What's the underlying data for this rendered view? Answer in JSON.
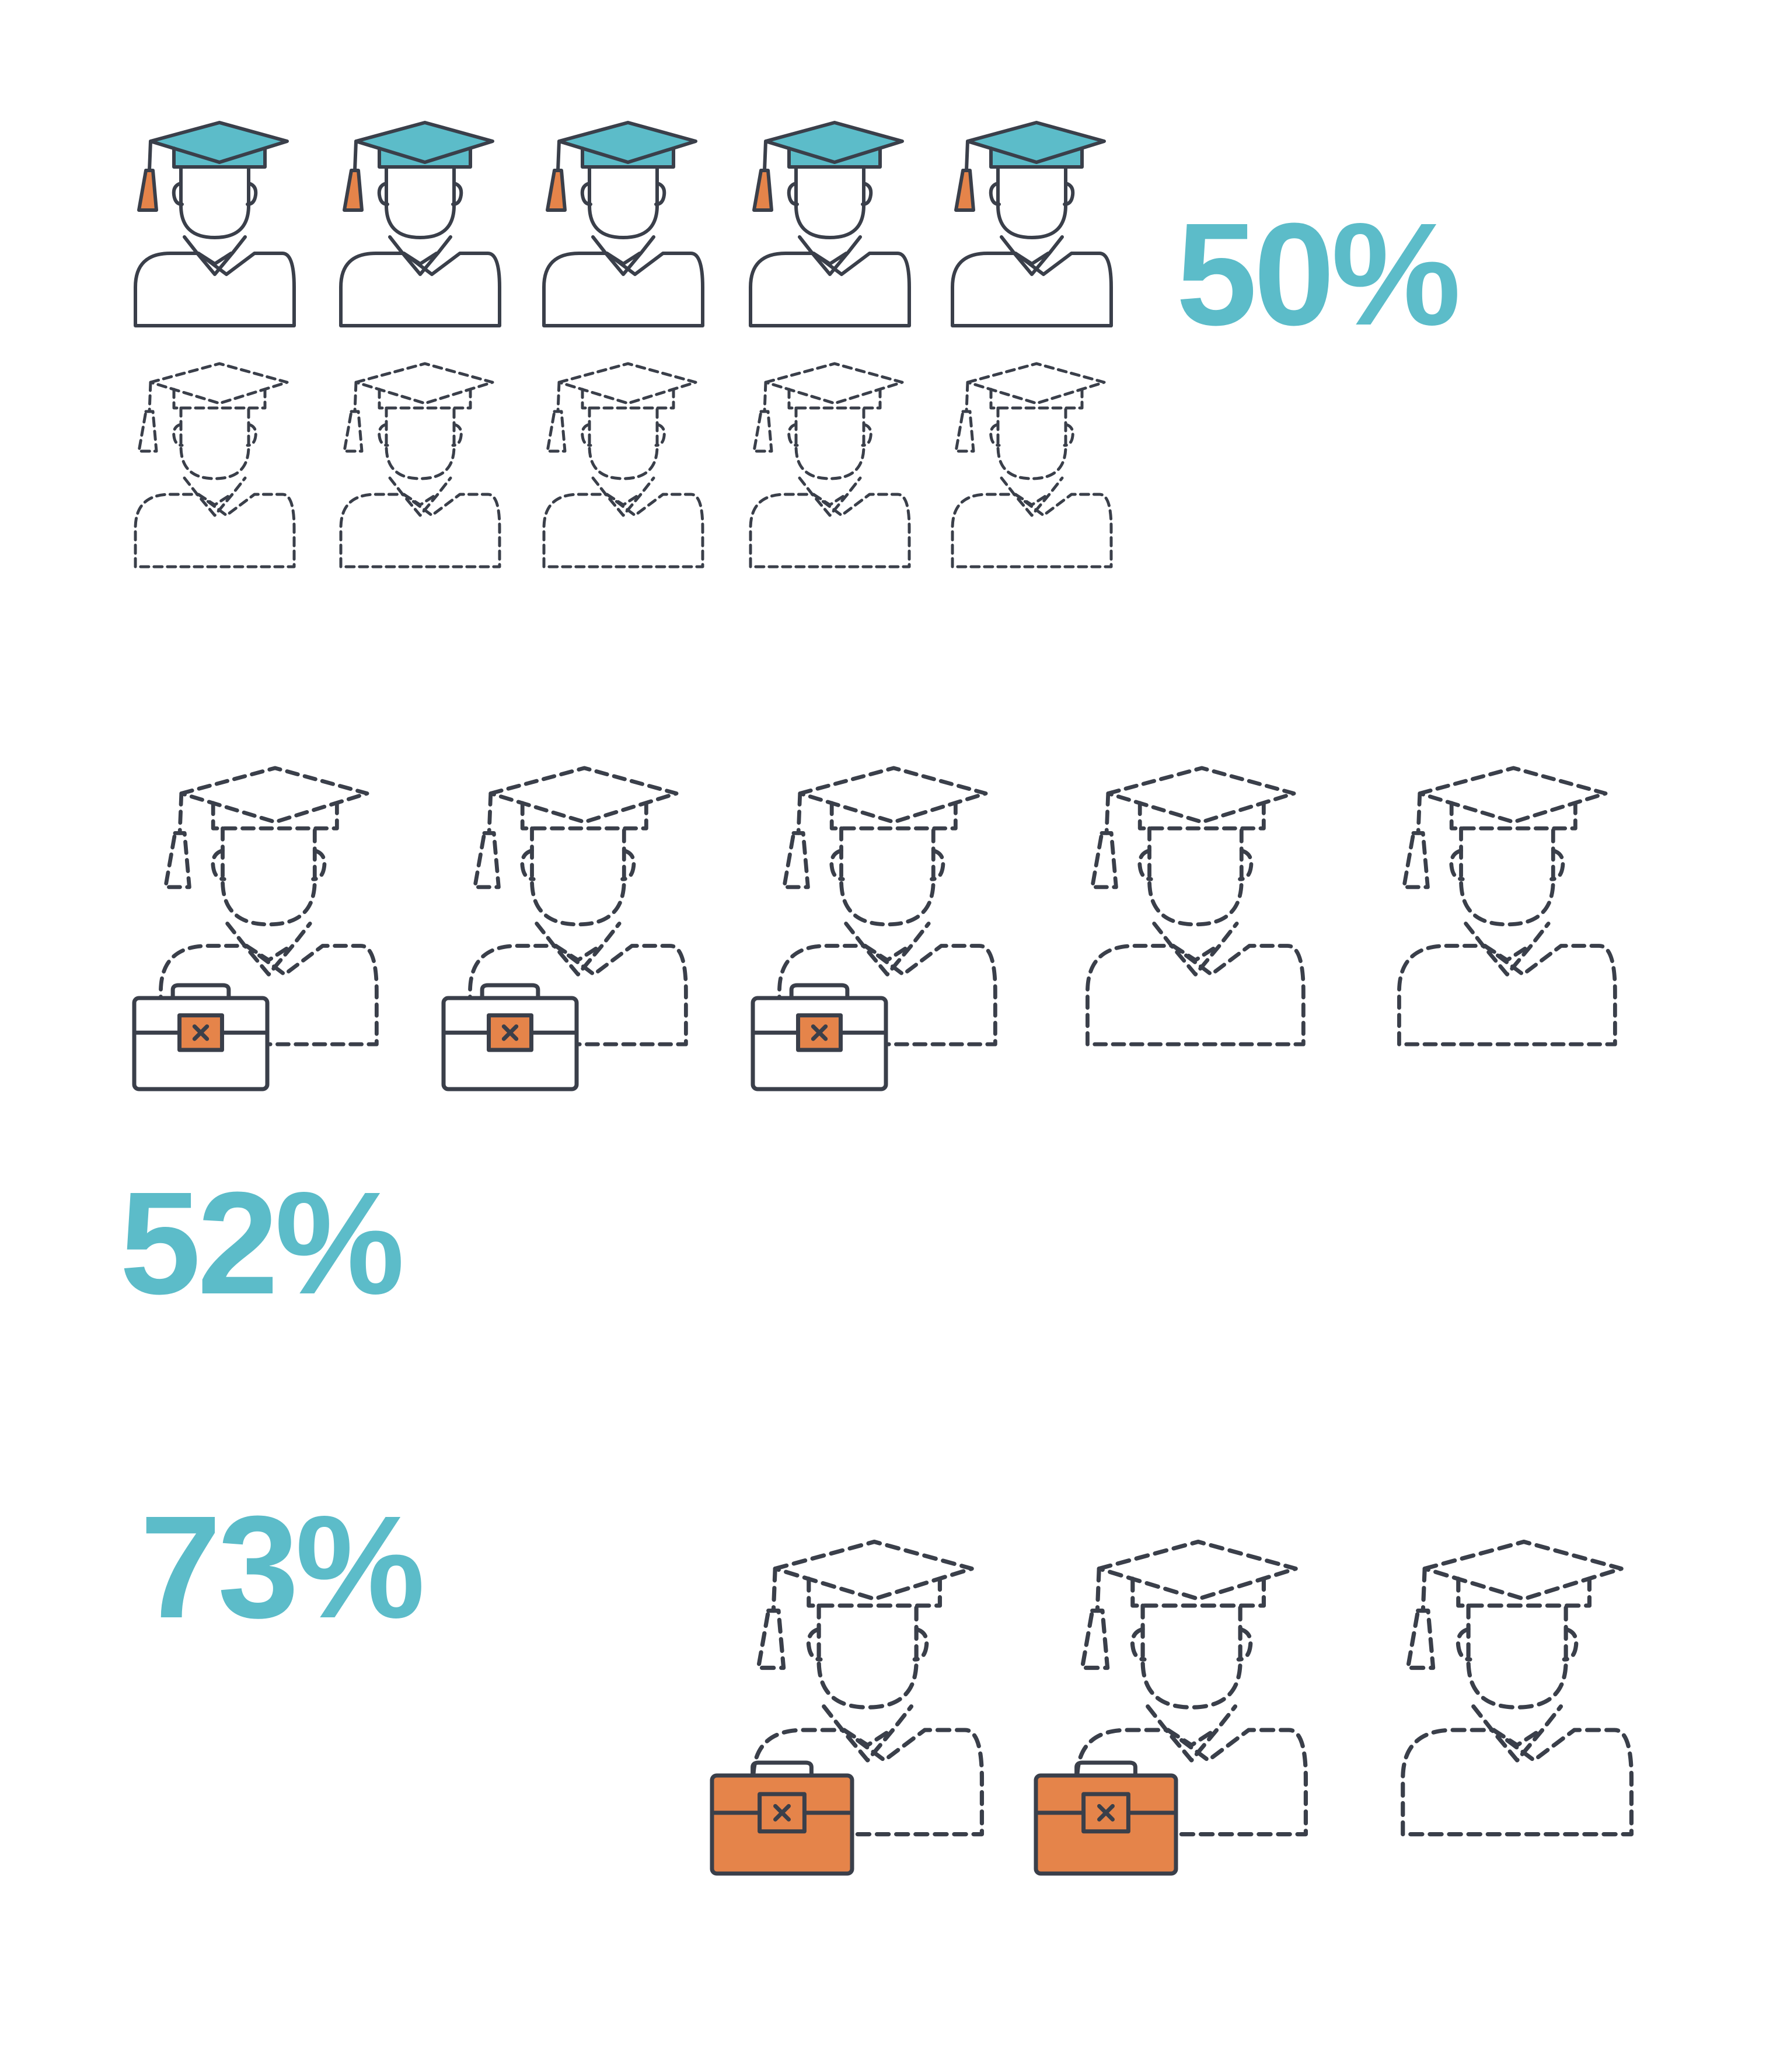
{
  "colors": {
    "outline": "#3a3f4a",
    "accent_teal": "#5cbcc9",
    "accent_orange": "#e5844a",
    "text_teal": "#5cbcc9",
    "background": "#ffffff"
  },
  "icons": {
    "figure": "graduate-icon",
    "briefcase": "briefcase-icon"
  },
  "groups": [
    {
      "percent_label": "50%",
      "total": 10,
      "highlighted_graduates": 5,
      "briefcases": 0,
      "briefcase_style": "none"
    },
    {
      "percent_label": "52%",
      "total": 5,
      "highlighted_graduates": 0,
      "briefcases": 3,
      "briefcase_style": "outline"
    },
    {
      "percent_label": "73%",
      "total": 3,
      "highlighted_graduates": 0,
      "briefcases": 2,
      "briefcase_style": "filled"
    }
  ]
}
